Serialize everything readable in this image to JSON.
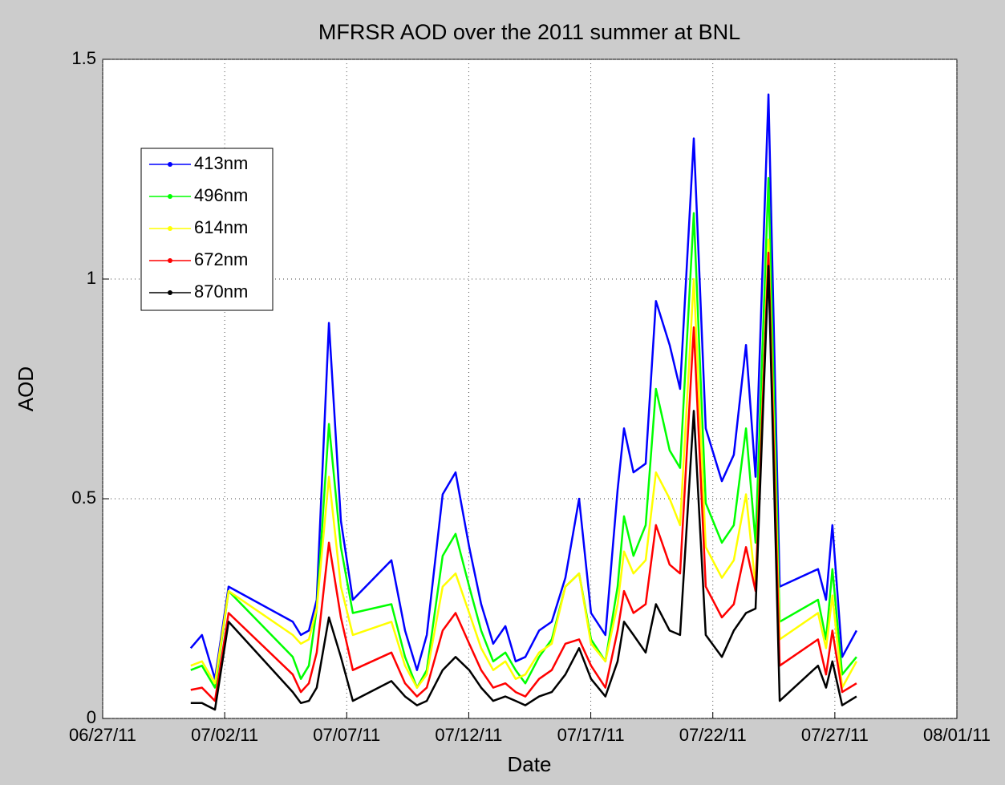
{
  "chart_data": {
    "type": "line",
    "title": "MFRSR AOD over the 2011 summer at BNL",
    "xlabel": "Date",
    "ylabel": "AOD",
    "x": [
      734684.61,
      734685.07,
      734685.6,
      734686.16,
      734688.79,
      734689.12,
      734689.45,
      734689.77,
      734690.27,
      734690.76,
      734691.25,
      734692.83,
      734693.39,
      734693.88,
      734694.28,
      734694.93,
      734695.46,
      734696.02,
      734696.51,
      734697.0,
      734697.5,
      734697.92,
      734698.32,
      734698.88,
      734699.4,
      734699.96,
      734700.52,
      734701.01,
      734701.6,
      734702.1,
      734702.36,
      734702.75,
      734703.25,
      734703.67,
      734704.23,
      734704.66,
      734705.22,
      734705.71,
      734706.37,
      734706.86,
      734707.36,
      734707.75,
      734708.28,
      734708.74,
      734710.31,
      734710.64,
      734710.9,
      734711.3,
      734711.89
    ],
    "series": [
      {
        "name": "413nm",
        "color": "#0000ff",
        "values": [
          0.16,
          0.19,
          0.09,
          0.3,
          0.22,
          0.19,
          0.2,
          0.27,
          0.9,
          0.45,
          0.27,
          0.36,
          0.2,
          0.11,
          0.19,
          0.51,
          0.56,
          0.39,
          0.26,
          0.17,
          0.21,
          0.13,
          0.14,
          0.2,
          0.22,
          0.32,
          0.5,
          0.24,
          0.19,
          0.52,
          0.66,
          0.56,
          0.58,
          0.95,
          0.85,
          0.75,
          1.32,
          0.66,
          0.54,
          0.6,
          0.85,
          0.55,
          1.42,
          0.3,
          0.34,
          0.27,
          0.44,
          0.14,
          0.2
        ]
      },
      {
        "name": "496nm",
        "color": "#00ff00",
        "values": [
          0.11,
          0.12,
          0.07,
          0.29,
          0.14,
          0.09,
          0.12,
          0.25,
          0.67,
          0.39,
          0.24,
          0.26,
          0.14,
          0.07,
          0.11,
          0.37,
          0.42,
          0.3,
          0.2,
          0.13,
          0.15,
          0.11,
          0.08,
          0.14,
          0.18,
          0.3,
          0.33,
          0.18,
          0.13,
          0.3,
          0.46,
          0.37,
          0.44,
          0.75,
          0.61,
          0.57,
          1.15,
          0.49,
          0.4,
          0.44,
          0.66,
          0.4,
          1.23,
          0.22,
          0.27,
          0.18,
          0.34,
          0.1,
          0.14
        ]
      },
      {
        "name": "614nm",
        "color": "#ffff00",
        "values": [
          0.12,
          0.13,
          0.08,
          0.29,
          0.19,
          0.17,
          0.18,
          0.25,
          0.55,
          0.3,
          0.19,
          0.22,
          0.12,
          0.07,
          0.1,
          0.3,
          0.33,
          0.24,
          0.16,
          0.11,
          0.13,
          0.09,
          0.1,
          0.15,
          0.17,
          0.3,
          0.33,
          0.17,
          0.13,
          0.26,
          0.38,
          0.33,
          0.36,
          0.56,
          0.5,
          0.44,
          1.0,
          0.39,
          0.32,
          0.36,
          0.51,
          0.3,
          1.09,
          0.18,
          0.24,
          0.16,
          0.28,
          0.07,
          0.13
        ]
      },
      {
        "name": "672nm",
        "color": "#ff0000",
        "values": [
          0.065,
          0.07,
          0.04,
          0.24,
          0.1,
          0.06,
          0.08,
          0.15,
          0.4,
          0.23,
          0.11,
          0.15,
          0.08,
          0.05,
          0.07,
          0.2,
          0.24,
          0.17,
          0.11,
          0.07,
          0.08,
          0.06,
          0.05,
          0.09,
          0.11,
          0.17,
          0.18,
          0.12,
          0.07,
          0.2,
          0.29,
          0.24,
          0.26,
          0.44,
          0.35,
          0.33,
          0.89,
          0.3,
          0.23,
          0.26,
          0.39,
          0.29,
          1.06,
          0.12,
          0.18,
          0.1,
          0.2,
          0.06,
          0.08
        ]
      },
      {
        "name": "870nm",
        "color": "#000000",
        "values": [
          0.035,
          0.035,
          0.02,
          0.22,
          0.06,
          0.035,
          0.04,
          0.07,
          0.23,
          0.14,
          0.04,
          0.085,
          0.05,
          0.03,
          0.04,
          0.11,
          0.14,
          0.11,
          0.07,
          0.04,
          0.05,
          0.04,
          0.03,
          0.05,
          0.06,
          0.1,
          0.16,
          0.09,
          0.05,
          0.13,
          0.22,
          0.19,
          0.15,
          0.26,
          0.2,
          0.19,
          0.7,
          0.19,
          0.14,
          0.2,
          0.24,
          0.25,
          1.03,
          0.04,
          0.12,
          0.07,
          0.13,
          0.03,
          0.05
        ]
      }
    ],
    "xlim": [
      734681,
      734716
    ],
    "xticks": [
      {
        "value": 734681,
        "label": "06/27/11"
      },
      {
        "value": 734686,
        "label": "07/02/11"
      },
      {
        "value": 734691,
        "label": "07/07/11"
      },
      {
        "value": 734696,
        "label": "07/12/11"
      },
      {
        "value": 734701,
        "label": "07/17/11"
      },
      {
        "value": 734706,
        "label": "07/22/11"
      },
      {
        "value": 734711,
        "label": "07/27/11"
      },
      {
        "value": 734716,
        "label": "08/01/11"
      }
    ],
    "ylim": [
      0,
      1.5
    ],
    "yticks": [
      0,
      0.5,
      1,
      1.5
    ],
    "grid": true,
    "legend": "upper left"
  }
}
